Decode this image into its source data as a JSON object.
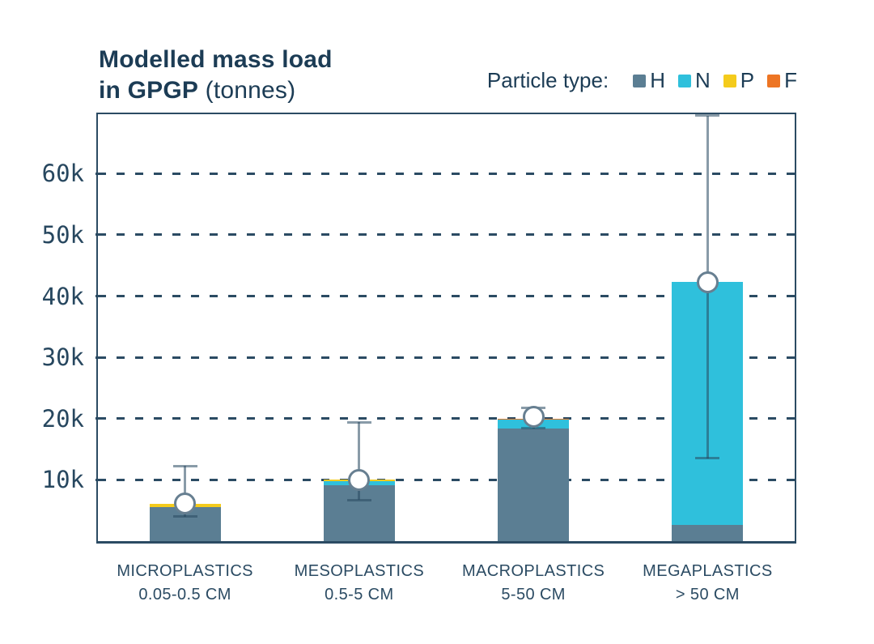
{
  "title": {
    "line1": "Modelled mass load",
    "line2_bold": "in GPGP",
    "line2_regular": " (tonnes)"
  },
  "legend": {
    "label": "Particle type:",
    "entries": [
      {
        "key": "H",
        "color": "#5b7e93"
      },
      {
        "key": "N",
        "color": "#2fc0dc"
      },
      {
        "key": "P",
        "color": "#f4cb1c"
      },
      {
        "key": "F",
        "color": "#ed7524"
      }
    ]
  },
  "colors": {
    "title_text": "#1c3c55",
    "axis_text": "#27475f",
    "frame": "#2b4b63",
    "error_bar": "rgba(40,72,96,0.55)",
    "marker_stroke": "#677f91",
    "marker_fill": "#ffffff"
  },
  "chart_data": {
    "type": "bar",
    "stacked": true,
    "title": "Modelled mass load in GPGP (tonnes)",
    "unit": "tonnes",
    "grid": "horizontal dashed",
    "legend_position": "top-right",
    "ylim": [
      0,
      69700
    ],
    "yticks": [
      {
        "label": "10k",
        "value": 10000
      },
      {
        "label": "20k",
        "value": 20000
      },
      {
        "label": "30k",
        "value": 30000
      },
      {
        "label": "40k",
        "value": 40000
      },
      {
        "label": "50k",
        "value": 50000
      },
      {
        "label": "60k",
        "value": 60000
      }
    ],
    "categories": [
      {
        "name": "MICROPLASTICS",
        "size": "0.05-0.5 CM"
      },
      {
        "name": "MESOPLASTICS",
        "size": "0.5-5 CM"
      },
      {
        "name": "MACROPLASTICS",
        "size": "5-50 CM"
      },
      {
        "name": "MEGAPLASTICS",
        "size": "> 50 CM"
      }
    ],
    "series": [
      {
        "name": "H",
        "color": "#5b7e93",
        "values": [
          5600,
          9100,
          18400,
          2700
        ]
      },
      {
        "name": "N",
        "color": "#2fc0dc",
        "values": [
          0,
          700,
          1400,
          39600
        ]
      },
      {
        "name": "P",
        "color": "#f4cb1c",
        "values": [
          500,
          200,
          0,
          0
        ]
      },
      {
        "name": "F",
        "color": "#ed7524",
        "values": [
          0,
          0,
          200,
          0
        ]
      }
    ],
    "totals": [
      6100,
      10000,
      20000,
      42300
    ],
    "error_bars": {
      "point": [
        6100,
        10000,
        20300,
        42200
      ],
      "low": [
        4000,
        6700,
        18400,
        13500
      ],
      "high": [
        12300,
        19400,
        21800,
        69500
      ]
    }
  }
}
